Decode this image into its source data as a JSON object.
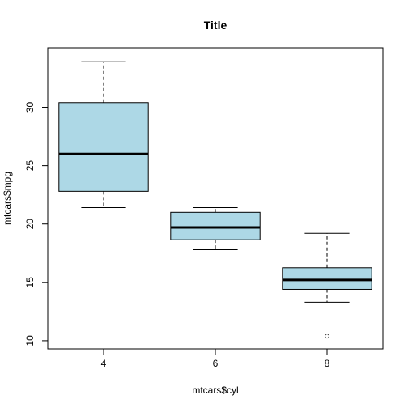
{
  "chart_data": {
    "type": "boxplot",
    "title": "Title",
    "xlabel": "mtcars$cyl",
    "ylabel": "mtcars$mpg",
    "ylim": [
      9.3,
      35.1
    ],
    "y_ticks": [
      10,
      15,
      20,
      25,
      30
    ],
    "categories": [
      "4",
      "6",
      "8"
    ],
    "box_color": "#ADD8E6",
    "boxes": [
      {
        "category": "4",
        "whisker_low": 21.4,
        "q1": 22.8,
        "median": 26.0,
        "q3": 30.4,
        "whisker_high": 33.9,
        "outliers": []
      },
      {
        "category": "6",
        "whisker_low": 17.8,
        "q1": 18.65,
        "median": 19.7,
        "q3": 21.0,
        "whisker_high": 21.4,
        "outliers": []
      },
      {
        "category": "8",
        "whisker_low": 13.3,
        "q1": 14.4,
        "median": 15.2,
        "q3": 16.25,
        "whisker_high": 19.2,
        "outliers": [
          10.4
        ]
      }
    ]
  }
}
